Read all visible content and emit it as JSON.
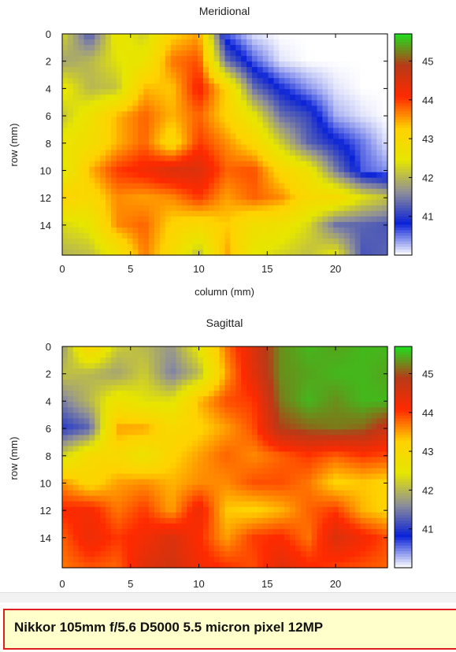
{
  "colors": {
    "scale": [
      "#ffffff",
      "#0a22d8",
      "#909098",
      "#e6e600",
      "#ffd200",
      "#ff2a00",
      "#b83a18",
      "#1ee01e"
    ],
    "scale_range": [
      40.0,
      45.7
    ],
    "frame": "#000000",
    "caption_border": "#e02020",
    "caption_bg": "#ffffcc"
  },
  "caption": {
    "text": "Nikkor 105mm f/5.6 D5000 5.5 micron pixel 12MP"
  },
  "chart_data": [
    {
      "type": "heatmap",
      "title": "Meridional",
      "xlabel": "column (mm)",
      "ylabel": "row (mm)",
      "xlim": [
        0,
        23.8
      ],
      "ylim": [
        16.2,
        0
      ],
      "xticks": [
        0,
        5,
        10,
        15,
        20
      ],
      "yticks": [
        0,
        2,
        4,
        6,
        8,
        10,
        12,
        14
      ],
      "colorbar_ticks": [
        41,
        42,
        43,
        44,
        45
      ],
      "colorbar_range": [
        40.0,
        45.7
      ],
      "x": [
        0,
        2,
        4,
        6,
        8,
        10,
        12,
        14,
        16,
        18,
        20,
        22,
        23.8
      ],
      "y": [
        0,
        2,
        4,
        6,
        8,
        10,
        12,
        14,
        16
      ],
      "z": [
        [
          42.3,
          41.2,
          42.6,
          42.2,
          43.2,
          43.5,
          40.6,
          40.1,
          40.0,
          40.0,
          40.0,
          40.0,
          40.0
        ],
        [
          41.8,
          42.0,
          42.4,
          42.6,
          43.7,
          43.9,
          41.4,
          40.6,
          40.1,
          40.0,
          40.0,
          40.0,
          40.0
        ],
        [
          42.6,
          42.0,
          42.1,
          43.4,
          43.3,
          44.2,
          43.2,
          41.4,
          40.8,
          40.4,
          40.1,
          40.0,
          40.0
        ],
        [
          42.1,
          42.7,
          43.4,
          43.8,
          43.4,
          43.8,
          43.2,
          42.5,
          41.4,
          41.1,
          40.3,
          40.1,
          40.0
        ],
        [
          42.6,
          42.8,
          43.4,
          43.8,
          43.0,
          44.0,
          43.6,
          43.1,
          42.2,
          41.3,
          40.9,
          40.5,
          40.1
        ],
        [
          42.3,
          43.4,
          44.0,
          44.2,
          44.5,
          44.5,
          43.8,
          43.9,
          43.1,
          42.7,
          41.5,
          40.6,
          40.4
        ],
        [
          43.2,
          43.0,
          43.6,
          43.5,
          43.6,
          44.0,
          43.5,
          43.8,
          43.6,
          43.0,
          43.0,
          42.4,
          42.1
        ],
        [
          42.3,
          42.5,
          43.6,
          43.8,
          43.2,
          43.0,
          43.3,
          42.8,
          42.7,
          42.3,
          41.4,
          41.3,
          41.2
        ],
        [
          42.0,
          42.1,
          42.7,
          43.7,
          43.0,
          42.1,
          43.5,
          42.5,
          42.3,
          42.1,
          42.4,
          41.2,
          41.3
        ]
      ]
    },
    {
      "type": "heatmap",
      "title": "Sagittal",
      "xlabel": "",
      "ylabel": "row (mm)",
      "xlim": [
        0,
        23.8
      ],
      "ylim": [
        16.2,
        0
      ],
      "xticks": [
        0,
        5,
        10,
        15,
        20
      ],
      "yticks": [
        0,
        2,
        4,
        6,
        8,
        10,
        12,
        14
      ],
      "colorbar_ticks": [
        41,
        42,
        43,
        44,
        45
      ],
      "colorbar_range": [
        40.0,
        45.7
      ],
      "x": [
        0,
        2,
        4,
        6,
        8,
        10,
        12,
        14,
        16,
        18,
        20,
        22,
        23.8
      ],
      "y": [
        0,
        2,
        4,
        6,
        8,
        10,
        12,
        14,
        16
      ],
      "z": [
        [
          41.7,
          43.2,
          42.2,
          42.0,
          41.7,
          42.5,
          43.7,
          44.5,
          45.3,
          45.5,
          45.4,
          45.5,
          45.5
        ],
        [
          42.1,
          42.0,
          41.8,
          42.2,
          41.5,
          42.0,
          43.5,
          44.4,
          45.3,
          45.4,
          45.5,
          45.5,
          45.4
        ],
        [
          41.5,
          42.0,
          42.7,
          42.4,
          42.4,
          43.4,
          43.9,
          44.0,
          45.2,
          45.5,
          45.3,
          45.5,
          45.5
        ],
        [
          41.0,
          41.3,
          43.5,
          43.5,
          43.0,
          43.2,
          43.5,
          43.9,
          44.9,
          45.1,
          45.2,
          45.1,
          44.7
        ],
        [
          42.2,
          43.0,
          43.0,
          42.6,
          43.2,
          43.5,
          43.8,
          43.6,
          43.8,
          44.0,
          43.8,
          44.0,
          43.9
        ],
        [
          43.6,
          43.1,
          43.5,
          43.6,
          43.4,
          43.6,
          43.6,
          43.9,
          43.9,
          43.7,
          43.2,
          43.3,
          43.2
        ],
        [
          44.1,
          44.2,
          43.7,
          44.0,
          43.5,
          44.3,
          43.3,
          43.2,
          43.4,
          43.8,
          44.0,
          43.4,
          43.2
        ],
        [
          43.8,
          44.3,
          44.0,
          44.2,
          44.5,
          44.1,
          43.5,
          44.0,
          44.1,
          43.7,
          44.5,
          44.2,
          43.9
        ],
        [
          43.7,
          43.9,
          43.8,
          44.4,
          44.6,
          44.2,
          44.0,
          43.9,
          44.4,
          44.1,
          44.0,
          43.9,
          43.8
        ]
      ]
    }
  ]
}
